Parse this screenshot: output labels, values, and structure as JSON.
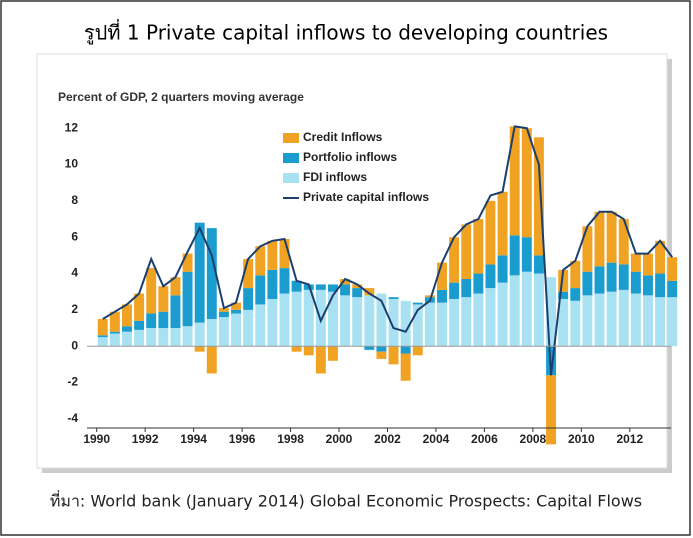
{
  "chart_data": {
    "type": "bar",
    "title": "รูปที่ 1 Private capital inflows to developing countries",
    "subtitle": "Percent of GDP, 2 quarters moving average",
    "source": "ที่มา: World bank (January 2014) Global Economic Prospects: Capital Flows",
    "x": [
      1990.25,
      1990.75,
      1991.25,
      1991.75,
      1992.25,
      1992.75,
      1993.25,
      1993.75,
      1994.25,
      1994.75,
      1995.25,
      1995.75,
      1996.25,
      1996.75,
      1997.25,
      1997.75,
      1998.25,
      1998.75,
      1999.25,
      1999.75,
      2000.25,
      2000.75,
      2001.25,
      2001.75,
      2002.25,
      2002.75,
      2003.25,
      2003.75,
      2004.25,
      2004.75,
      2005.25,
      2005.75,
      2006.25,
      2006.75,
      2007.25,
      2007.75,
      2008.25,
      2008.75,
      2009.25,
      2009.75,
      2010.25,
      2010.75,
      2011.25,
      2011.75,
      2012.25,
      2012.75,
      2013.25,
      2013.75
    ],
    "series": [
      {
        "name": "Credit Inflows",
        "color": "#f0a323",
        "values": [
          0.9,
          1.1,
          1.2,
          1.5,
          2.5,
          1.4,
          1.0,
          1.0,
          -0.3,
          -1.5,
          0.2,
          0.4,
          1.6,
          1.6,
          1.6,
          1.6,
          -0.3,
          -0.5,
          -1.5,
          -0.8,
          0.3,
          0.2,
          0.4,
          -0.4,
          -1.0,
          -1.5,
          -0.5,
          0.1,
          1.5,
          2.5,
          3.0,
          3.0,
          3.5,
          3.5,
          6.0,
          6.0,
          6.5,
          -3.8,
          1.2,
          1.5,
          2.5,
          3.0,
          2.8,
          2.5,
          1.0,
          1.2,
          1.8,
          1.3
        ]
      },
      {
        "name": "Portfolio inflows",
        "color": "#1b9ccf",
        "values": [
          0.1,
          0.1,
          0.3,
          0.5,
          0.8,
          0.9,
          1.8,
          3.0,
          5.5,
          5.0,
          0.3,
          0.2,
          1.2,
          1.6,
          1.6,
          1.4,
          0.6,
          0.3,
          0.3,
          0.4,
          0.6,
          0.5,
          -0.2,
          -0.3,
          0.1,
          -0.4,
          0.1,
          0.3,
          0.7,
          0.9,
          1.0,
          1.1,
          1.3,
          1.5,
          2.2,
          1.9,
          1.0,
          -1.6,
          0.4,
          0.7,
          1.3,
          1.5,
          1.6,
          1.4,
          1.2,
          1.1,
          1.3,
          0.9
        ]
      },
      {
        "name": "FDI inflows",
        "color": "#a8e2f2",
        "values": [
          0.5,
          0.7,
          0.8,
          0.9,
          1.0,
          1.0,
          1.0,
          1.1,
          1.3,
          1.5,
          1.6,
          1.8,
          2.0,
          2.3,
          2.6,
          2.9,
          3.0,
          3.1,
          3.1,
          3.0,
          2.8,
          2.7,
          2.8,
          2.9,
          2.6,
          2.5,
          2.3,
          2.4,
          2.4,
          2.6,
          2.7,
          2.9,
          3.2,
          3.5,
          3.9,
          4.1,
          4.0,
          3.8,
          2.6,
          2.5,
          2.8,
          2.9,
          3.0,
          3.1,
          2.9,
          2.8,
          2.7,
          2.7
        ]
      },
      {
        "name": "Private capital inflows",
        "color": "#1c3f6e",
        "type": "line",
        "values": [
          1.5,
          1.9,
          2.3,
          2.9,
          4.8,
          3.3,
          3.8,
          5.2,
          6.5,
          5.0,
          2.1,
          2.4,
          4.8,
          5.5,
          5.8,
          5.9,
          3.6,
          3.4,
          1.4,
          2.8,
          3.7,
          3.4,
          2.9,
          2.5,
          1.0,
          0.8,
          2.0,
          2.5,
          4.6,
          6.0,
          6.7,
          7.0,
          8.3,
          8.5,
          12.1,
          12.0,
          10.0,
          -1.6,
          4.2,
          4.7,
          6.6,
          7.4,
          7.4,
          7.0,
          5.1,
          5.1,
          5.8,
          4.9
        ]
      }
    ],
    "xlim": [
      1989.6,
      2013.7
    ],
    "xticks": [
      1990,
      1992,
      1994,
      1996,
      1998,
      2000,
      2002,
      2004,
      2006,
      2008,
      2010,
      2012
    ],
    "ylim": [
      -4.5,
      13
    ],
    "yticks": [
      -4,
      -2,
      0,
      2,
      4,
      6,
      8,
      10,
      12
    ],
    "grid": false
  }
}
